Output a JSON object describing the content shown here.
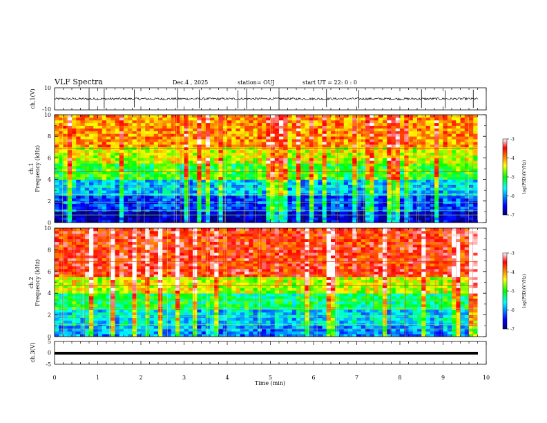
{
  "header": {
    "title": "VLF Spectra",
    "date": "Dec.4 , 2025",
    "station": "station= OUJ",
    "start_ut": "start  UT  =   22: 0  : 0"
  },
  "chart_data": [
    {
      "id": "ch1_waveform",
      "type": "line",
      "ylabel": "ch.1(V)",
      "ylim": [
        -10,
        10
      ],
      "yticks": [
        "10",
        "-10"
      ],
      "xlim": [
        0,
        10
      ],
      "baseline": 0,
      "spikes_min": [
        0.8,
        1.15,
        1.85,
        2.85,
        3.35,
        4.25,
        4.45,
        5.2,
        6.3,
        7.05,
        8.5,
        9.05,
        9.7
      ]
    },
    {
      "id": "ch1_spectrogram",
      "type": "heatmap",
      "ylabel": "ch.1\nFrequency (kHz)",
      "ylim": [
        0,
        10
      ],
      "yticks": [
        "0",
        "2",
        "4",
        "6",
        "8",
        "10"
      ],
      "xlim": [
        0,
        9.8
      ],
      "colorbar": {
        "label": "log(PSD)(V²/Hz)",
        "ticks": [
          "-3",
          "-4",
          "-5",
          "-6",
          "-7"
        ],
        "range": [
          -7,
          -3
        ]
      },
      "bands_khz": [
        {
          "f": [
            0,
            1.0
          ],
          "v": -6.8
        },
        {
          "f": [
            1.0,
            2.5
          ],
          "v": -6.3
        },
        {
          "f": [
            2.5,
            4.0
          ],
          "v": -5.8
        },
        {
          "f": [
            4.0,
            5.5
          ],
          "v": -5.0
        },
        {
          "f": [
            5.5,
            7.0
          ],
          "v": -4.5
        },
        {
          "f": [
            7.0,
            10.0
          ],
          "v": -4.0
        }
      ]
    },
    {
      "id": "ch2_spectrogram",
      "type": "heatmap",
      "ylabel": "ch.2\nFrequency (kHz)",
      "ylim": [
        0,
        10
      ],
      "yticks": [
        "0",
        "2",
        "4",
        "6",
        "8",
        "10"
      ],
      "xlim": [
        0,
        9.8
      ],
      "colorbar": {
        "label": "log(PSD)(V²/Hz)",
        "ticks": [
          "-3",
          "-4",
          "-5",
          "-6",
          "-7"
        ],
        "range": [
          -7,
          -3
        ]
      },
      "bands_khz": [
        {
          "f": [
            0,
            1.0
          ],
          "v": -6.0
        },
        {
          "f": [
            1.0,
            2.5
          ],
          "v": -5.7
        },
        {
          "f": [
            2.5,
            4.0
          ],
          "v": -5.2
        },
        {
          "f": [
            4.0,
            5.5
          ],
          "v": -4.5
        },
        {
          "f": [
            5.5,
            10.0
          ],
          "v": -3.6
        }
      ]
    },
    {
      "id": "ch3_waveform",
      "type": "line",
      "ylabel": "ch.3(V)",
      "ylim": [
        -5,
        5
      ],
      "yticks": [
        "5",
        "0",
        "-5"
      ],
      "xlim": [
        0,
        10
      ],
      "baseline": 0
    }
  ],
  "xaxis": {
    "label": "Time (min)",
    "ticks": [
      "0",
      "1",
      "2",
      "3",
      "4",
      "5",
      "6",
      "7",
      "8",
      "9",
      "10"
    ]
  },
  "colors": {
    "low": "#00008f",
    "high": "#ff0000"
  }
}
